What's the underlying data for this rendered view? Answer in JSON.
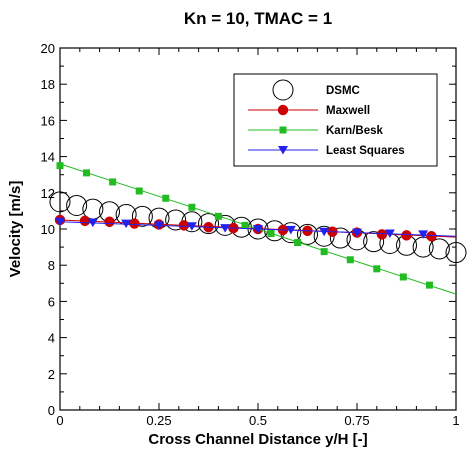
{
  "chart_data": {
    "type": "line",
    "title": "Kn = 10, TMAC = 1",
    "xlabel": "Cross Channel Distance y/H [-]",
    "ylabel": "Velocity [m/s]",
    "xlim": [
      0,
      1
    ],
    "ylim": [
      0,
      20
    ],
    "xticks": [
      0,
      0.25,
      0.5,
      0.75,
      1
    ],
    "xtick_labels": [
      "0",
      "0.25",
      "0.5",
      "0.75",
      "1"
    ],
    "yticks": [
      0,
      2,
      4,
      6,
      8,
      10,
      12,
      14,
      16,
      18,
      20
    ],
    "ytick_labels": [
      "0",
      "2",
      "4",
      "6",
      "8",
      "10",
      "12",
      "14",
      "16",
      "18",
      "20"
    ],
    "grid": false,
    "legend": {
      "position": "top-right",
      "entries": [
        "DSMC",
        "Maxwell",
        "Karn/Besk",
        "Least Squares"
      ]
    },
    "series": [
      {
        "name": "DSMC",
        "style": "markers",
        "marker": "open-circle",
        "color": "#000000",
        "x": [
          0.0,
          0.042,
          0.083,
          0.125,
          0.167,
          0.208,
          0.25,
          0.292,
          0.333,
          0.375,
          0.417,
          0.458,
          0.5,
          0.542,
          0.583,
          0.625,
          0.667,
          0.708,
          0.75,
          0.792,
          0.833,
          0.875,
          0.917,
          0.958,
          1.0
        ],
        "y": [
          11.5,
          11.3,
          11.1,
          10.95,
          10.8,
          10.7,
          10.6,
          10.5,
          10.4,
          10.3,
          10.2,
          10.1,
          10.0,
          9.9,
          9.8,
          9.7,
          9.6,
          9.5,
          9.4,
          9.3,
          9.2,
          9.1,
          9.0,
          8.9,
          8.7
        ]
      },
      {
        "name": "Maxwell",
        "style": "line+markers",
        "marker": "filled-circle",
        "color": "#cc0000",
        "line_x": [
          0,
          1
        ],
        "line_y": [
          10.5,
          9.55
        ],
        "x": [
          0.0,
          0.063,
          0.125,
          0.188,
          0.25,
          0.313,
          0.375,
          0.438,
          0.5,
          0.563,
          0.625,
          0.688,
          0.75,
          0.813,
          0.875,
          0.938
        ],
        "y": [
          10.5,
          10.45,
          10.4,
          10.3,
          10.25,
          10.2,
          10.1,
          10.05,
          10.0,
          9.95,
          9.9,
          9.85,
          9.8,
          9.7,
          9.65,
          9.6
        ]
      },
      {
        "name": "Karn/Besk",
        "style": "line+markers",
        "marker": "filled-square",
        "color": "#22bb22",
        "line_x": [
          0,
          1
        ],
        "line_y": [
          13.6,
          6.4
        ],
        "x": [
          0.0,
          0.067,
          0.133,
          0.2,
          0.267,
          0.333,
          0.4,
          0.467,
          0.533,
          0.6,
          0.667,
          0.733,
          0.8,
          0.867,
          0.933
        ],
        "y": [
          13.5,
          13.1,
          12.6,
          12.1,
          11.7,
          11.2,
          10.7,
          10.2,
          9.75,
          9.25,
          8.75,
          8.3,
          7.8,
          7.35,
          6.9
        ]
      },
      {
        "name": "Least Squares",
        "style": "line+markers",
        "marker": "filled-triangle-down",
        "color": "#2222ee",
        "line_x": [
          0,
          1
        ],
        "line_y": [
          10.4,
          9.6
        ],
        "x": [
          0.0,
          0.083,
          0.167,
          0.25,
          0.333,
          0.417,
          0.5,
          0.583,
          0.667,
          0.75,
          0.833,
          0.917
        ],
        "y": [
          10.4,
          10.35,
          10.3,
          10.2,
          10.15,
          10.05,
          10.0,
          9.95,
          9.85,
          9.8,
          9.75,
          9.7
        ]
      }
    ]
  }
}
